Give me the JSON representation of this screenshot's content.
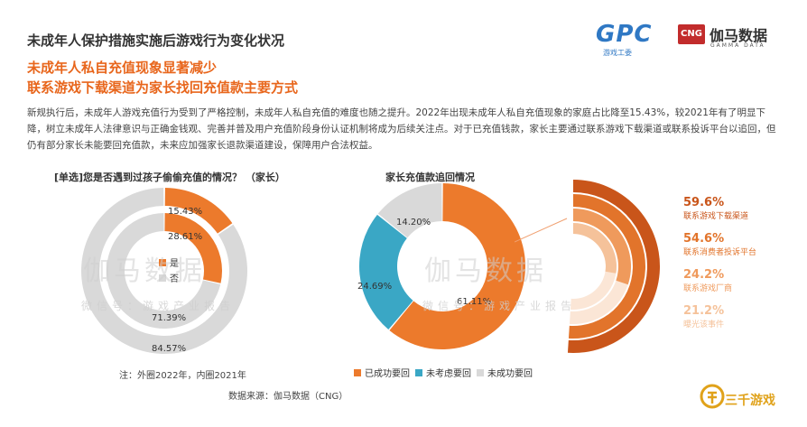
{
  "header": {
    "title": "未成年人保护措施实施后游戏行为变化状况",
    "subtitle_line1": "未成年人私自充值现象显著减少",
    "subtitle_line2": "联系游戏下载渠道为家长找回充值款主要方式",
    "body": "新规执行后，未成年人游戏充值行为受到了严格控制，未成年人私自充值的难度也随之提升。2022年出现未成年人私自充值现象的家庭占比降至15.43%，较2021年有了明显下降，树立未成年人法律意识与正确金钱观、完善并普及用户充值阶段身份认证机制将成为后续关注点。对于已充值钱款，家长主要通过联系游戏下载渠道或联系投诉平台以追回，但仍有部分家长未能要回充值款，未来应加强家长退款渠道建设，保障用户合法权益。"
  },
  "logos": {
    "gpc": "GPC",
    "gpc_sub": "游戏工委",
    "cng": "CNG",
    "gamma": "伽马数据",
    "gamma_sub": "GAMMA DATA",
    "corner": "三千游戏"
  },
  "watermark": {
    "main": "伽马数据",
    "sub": "微信号：游戏产业报告"
  },
  "left_chart": {
    "title": "[单选]您是否遇到过孩子偷偷充值的情况？ （家长）",
    "footnote": "注：外圈2022年，内圈2021年",
    "colors": {
      "yes": "#ec7a2c",
      "no": "#d9d9d9"
    }
  },
  "right_chart": {
    "title": "家长充值款追回情况",
    "colors": {
      "recovered": "#ec7a2c",
      "not_considered": "#3aa7c5",
      "not_recovered": "#d9d9d9"
    }
  },
  "source": "数据来源：伽马数据（CNG）",
  "chart_data": [
    {
      "type": "pie",
      "subtype": "nested-donut",
      "title": "[单选]您是否遇到过孩子偷偷充值的情况？ （家长）",
      "legend": [
        "是",
        "否"
      ],
      "rings": [
        {
          "name": "外圈2022年",
          "values": [
            {
              "label": "是",
              "value": 15.43
            },
            {
              "label": "否",
              "value": 84.57
            }
          ]
        },
        {
          "name": "内圈2021年",
          "values": [
            {
              "label": "是",
              "value": 28.61
            },
            {
              "label": "否",
              "value": 71.39
            }
          ]
        }
      ],
      "labels": {
        "outer_yes": "15.43%",
        "outer_no": "84.57%",
        "inner_yes": "28.61%",
        "inner_no": "71.39%"
      }
    },
    {
      "type": "pie",
      "subtype": "donut",
      "title": "家长充值款追回情况",
      "legend": [
        "已成功要回",
        "未考虑要回",
        "未成功要回"
      ],
      "values": [
        {
          "label": "已成功要回",
          "value": 61.11,
          "text": "61.11%"
        },
        {
          "label": "未考虑要回",
          "value": 24.69,
          "text": "24.69%"
        },
        {
          "label": "未成功要回",
          "value": 14.2,
          "text": "14.20%"
        }
      ]
    },
    {
      "type": "bar",
      "subtype": "concentric-arcs",
      "categories": [
        "联系游戏下载渠道",
        "联系消费者投诉平台",
        "联系游戏厂商",
        "曝光该事件"
      ],
      "values": [
        59.6,
        54.6,
        24.2,
        21.2
      ],
      "labels": [
        "59.6%",
        "54.6%",
        "24.2%",
        "21.2%"
      ],
      "colors": [
        "#c9551a",
        "#e2742b",
        "#ef9a5c",
        "#f5c29a"
      ]
    }
  ]
}
